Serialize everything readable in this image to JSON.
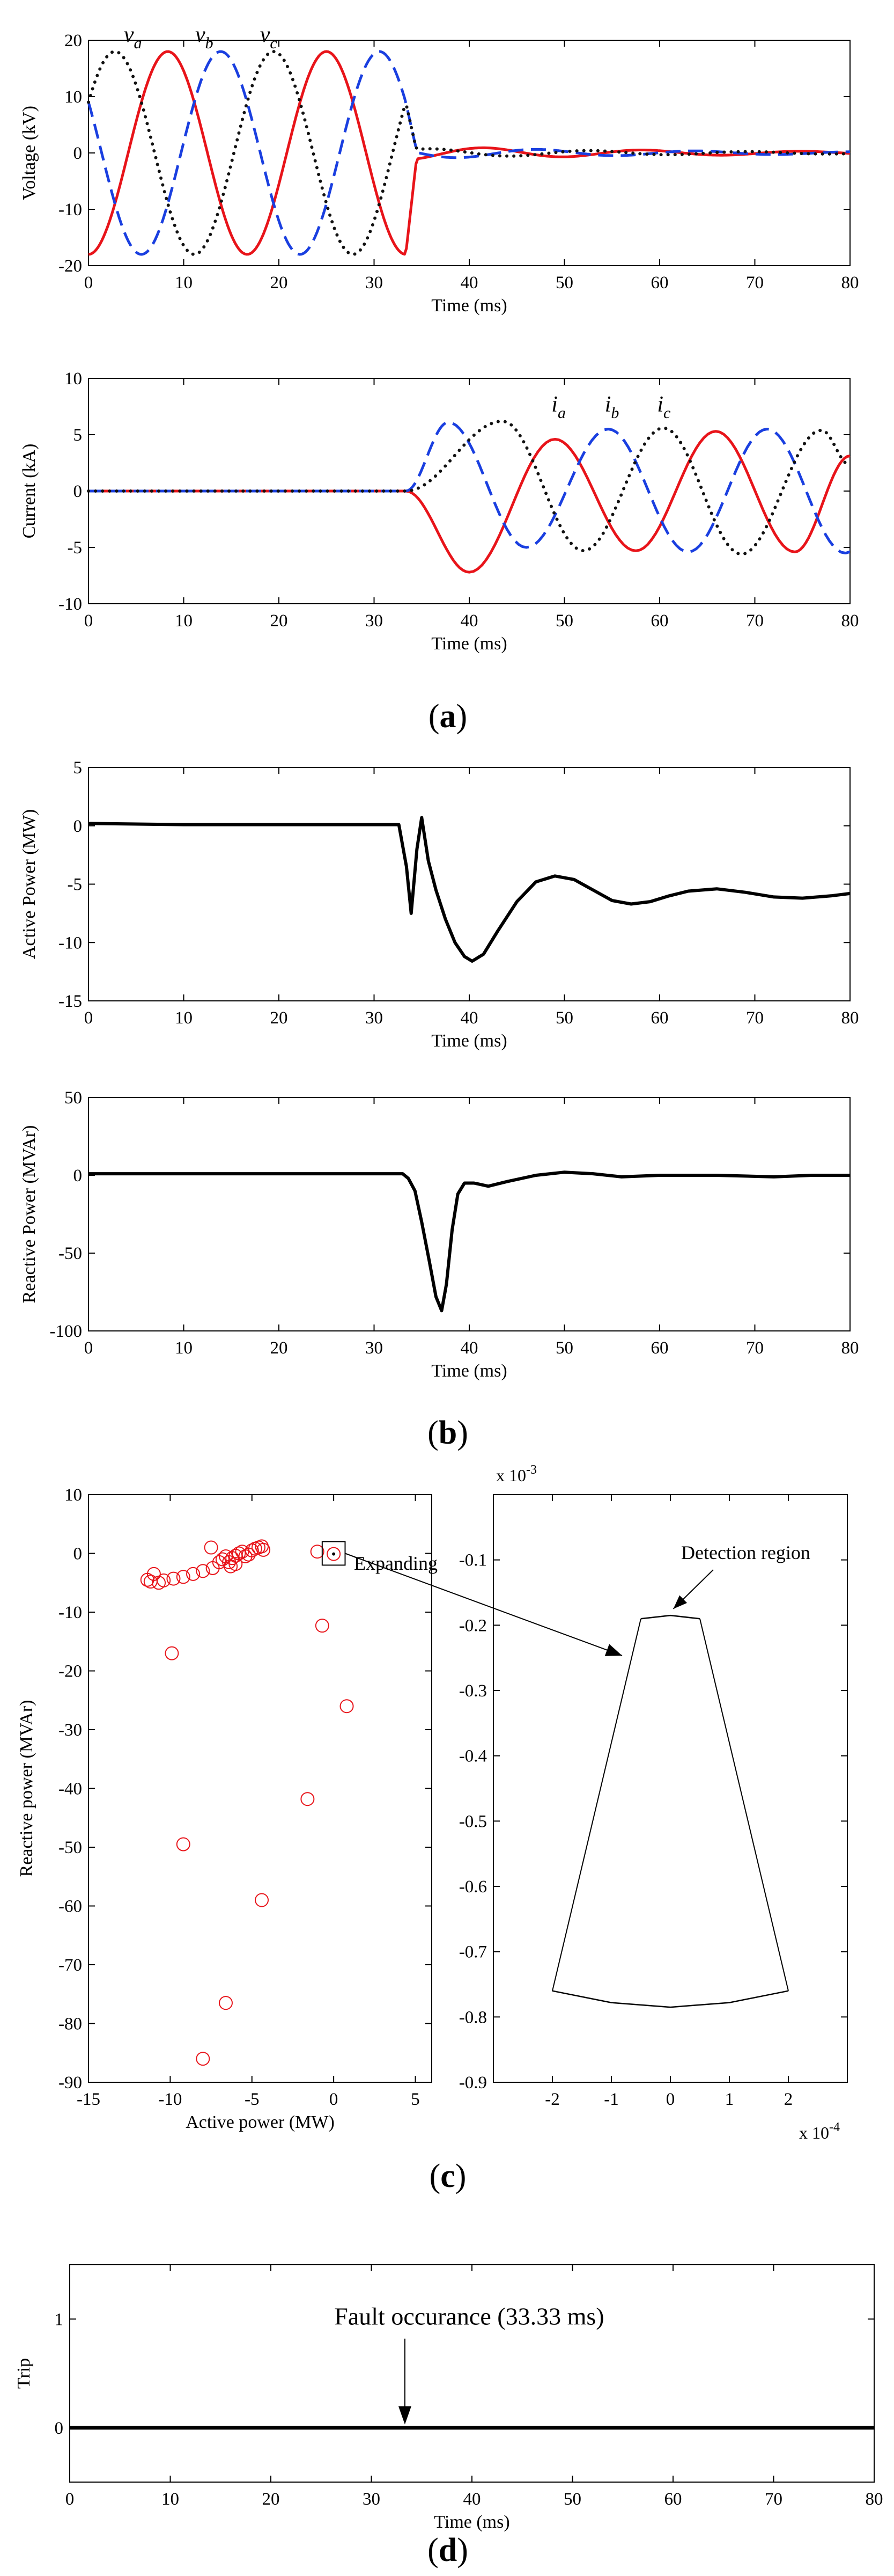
{
  "figure": {
    "panel_labels": {
      "a": {
        "open": "(",
        "letter": "a",
        "close": ")"
      },
      "b": {
        "open": "(",
        "letter": "b",
        "close": ")"
      },
      "c": {
        "open": "(",
        "letter": "c",
        "close": ")"
      },
      "d": {
        "open": "(",
        "letter": "d",
        "close": ")"
      }
    }
  },
  "chart_data": [
    {
      "id": "voltage",
      "type": "line",
      "xlabel": "Time (ms)",
      "ylabel": "Voltage (kV)",
      "xlim": [
        0,
        80
      ],
      "ylim": [
        -20,
        20
      ],
      "xticks": [
        0,
        10,
        20,
        30,
        40,
        50,
        60,
        70,
        80
      ],
      "yticks": [
        -20,
        -10,
        0,
        10,
        20
      ],
      "fault_time_ms": 33.33,
      "frequency_hz": 60,
      "series": [
        {
          "name": "va",
          "label_base": "v",
          "label_sub": "a",
          "color": "#e8141a",
          "dash": "solid",
          "pre_fault_amplitude": 18,
          "phase_deg": -90,
          "post_fault_peak": 1.2
        },
        {
          "name": "vb",
          "label_base": "v",
          "label_sub": "b",
          "color": "#1a3fe0",
          "dash": "dashed",
          "pre_fault_amplitude": 18,
          "phase_deg": 150,
          "post_fault_peak": 1.0
        },
        {
          "name": "vc",
          "label_base": "v",
          "label_sub": "c",
          "color": "#111111",
          "dash": "dotted",
          "pre_fault_amplitude": 18,
          "phase_deg": 30,
          "post_fault_peak": 0.8
        }
      ]
    },
    {
      "id": "current",
      "type": "line",
      "xlabel": "Time (ms)",
      "ylabel": "Current (kA)",
      "xlim": [
        0,
        80
      ],
      "ylim": [
        -10,
        10
      ],
      "xticks": [
        0,
        10,
        20,
        30,
        40,
        50,
        60,
        70,
        80
      ],
      "yticks": [
        -10,
        -5,
        0,
        5,
        10
      ],
      "fault_time_ms": 33.33,
      "series": [
        {
          "name": "ia",
          "label_base": "i",
          "label_sub": "a",
          "color": "#e8141a",
          "dash": "solid",
          "pre_fault": 0,
          "peaks": [
            [
              40,
              -7.2
            ],
            [
              49,
              4.6
            ],
            [
              57.5,
              -5.3
            ],
            [
              65.9,
              5.3
            ],
            [
              74.2,
              -5.4
            ]
          ]
        },
        {
          "name": "ib",
          "label_base": "i",
          "label_sub": "b",
          "color": "#1a3fe0",
          "dash": "dashed",
          "pre_fault": 0,
          "peaks": [
            [
              37.8,
              6.1
            ],
            [
              46,
              -5.0
            ],
            [
              54.6,
              5.5
            ],
            [
              63,
              -5.4
            ],
            [
              71.3,
              5.5
            ],
            [
              79.5,
              -5.5
            ]
          ]
        },
        {
          "name": "ic",
          "label_base": "i",
          "label_sub": "c",
          "color": "#111111",
          "dash": "dotted",
          "pre_fault": 0,
          "peaks": [
            [
              43.5,
              6.2
            ],
            [
              52,
              -5.3
            ],
            [
              60.4,
              5.6
            ],
            [
              68.6,
              -5.6
            ],
            [
              77,
              5.4
            ]
          ]
        }
      ]
    },
    {
      "id": "active_power",
      "type": "line",
      "xlabel": "Time (ms)",
      "ylabel": "Active Power (MW)",
      "xlim": [
        0,
        80
      ],
      "ylim": [
        -15,
        5
      ],
      "xticks": [
        0,
        10,
        20,
        30,
        40,
        50,
        60,
        70,
        80
      ],
      "yticks": [
        -15,
        -10,
        -5,
        0,
        5
      ],
      "series": [
        {
          "name": "P",
          "color": "#000000",
          "points": [
            [
              0,
              0.2
            ],
            [
              10,
              0.1
            ],
            [
              20,
              0.1
            ],
            [
              30,
              0.1
            ],
            [
              32.6,
              0.1
            ],
            [
              33.4,
              -3.5
            ],
            [
              33.9,
              -7.5
            ],
            [
              34.5,
              -2
            ],
            [
              35.0,
              0.7
            ],
            [
              35.7,
              -3
            ],
            [
              36.5,
              -5.5
            ],
            [
              37.5,
              -8
            ],
            [
              38.5,
              -10
            ],
            [
              39.5,
              -11.2
            ],
            [
              40.3,
              -11.6
            ],
            [
              41.5,
              -11
            ],
            [
              43,
              -9
            ],
            [
              45,
              -6.5
            ],
            [
              47,
              -4.8
            ],
            [
              49,
              -4.3
            ],
            [
              51,
              -4.6
            ],
            [
              53,
              -5.5
            ],
            [
              55,
              -6.4
            ],
            [
              57,
              -6.7
            ],
            [
              59,
              -6.5
            ],
            [
              61,
              -6.0
            ],
            [
              63,
              -5.6
            ],
            [
              66,
              -5.4
            ],
            [
              69,
              -5.7
            ],
            [
              72,
              -6.1
            ],
            [
              75,
              -6.2
            ],
            [
              78,
              -6.0
            ],
            [
              80,
              -5.8
            ]
          ]
        }
      ]
    },
    {
      "id": "reactive_power",
      "type": "line",
      "xlabel": "Time (ms)",
      "ylabel": "Reactive Power (MVAr)",
      "xlim": [
        0,
        80
      ],
      "ylim": [
        -100,
        50
      ],
      "xticks": [
        0,
        10,
        20,
        30,
        40,
        50,
        60,
        70,
        80
      ],
      "yticks": [
        -100,
        -50,
        0,
        50
      ],
      "series": [
        {
          "name": "Q",
          "color": "#000000",
          "points": [
            [
              0,
              1
            ],
            [
              10,
              1
            ],
            [
              20,
              1
            ],
            [
              30,
              1
            ],
            [
              33,
              1
            ],
            [
              33.6,
              -2
            ],
            [
              34.3,
              -10
            ],
            [
              35,
              -30
            ],
            [
              35.8,
              -55
            ],
            [
              36.5,
              -78
            ],
            [
              37.1,
              -87
            ],
            [
              37.6,
              -70
            ],
            [
              38.2,
              -35
            ],
            [
              38.8,
              -12
            ],
            [
              39.5,
              -5
            ],
            [
              40.5,
              -5
            ],
            [
              42,
              -7
            ],
            [
              44,
              -4
            ],
            [
              47,
              0
            ],
            [
              50,
              2
            ],
            [
              53,
              1
            ],
            [
              56,
              -1
            ],
            [
              60,
              0
            ],
            [
              66,
              0
            ],
            [
              72,
              -1
            ],
            [
              76,
              0
            ],
            [
              80,
              0
            ]
          ]
        }
      ]
    },
    {
      "id": "pq_scatter",
      "type": "scatter",
      "xlabel": "Active power (MW)",
      "ylabel": "Reactive power (MVAr)",
      "xlim": [
        -15,
        6
      ],
      "ylim": [
        -90,
        10
      ],
      "xticks": [
        -15,
        -10,
        -5,
        0,
        5
      ],
      "yticks": [
        -90,
        -80,
        -70,
        -60,
        -50,
        -40,
        -30,
        -20,
        -10,
        0,
        10
      ],
      "marker_color": "#e8141a",
      "points": [
        [
          -11.4,
          -4.5
        ],
        [
          -11.2,
          -4.8
        ],
        [
          -11.0,
          -3.5
        ],
        [
          -10.7,
          -5.0
        ],
        [
          -10.4,
          -4.6
        ],
        [
          -9.8,
          -4.3
        ],
        [
          -9.2,
          -4.0
        ],
        [
          -8.6,
          -3.5
        ],
        [
          -8.0,
          -3.0
        ],
        [
          -7.4,
          -2.5
        ],
        [
          -7.0,
          -1.5
        ],
        [
          -6.8,
          -1.0
        ],
        [
          -6.6,
          -0.5
        ],
        [
          -6.4,
          -1.5
        ],
        [
          -6.2,
          -0.8
        ],
        [
          -6.0,
          -0.4
        ],
        [
          -5.8,
          0.0
        ],
        [
          -5.6,
          0.3
        ],
        [
          -5.4,
          -0.5
        ],
        [
          -5.2,
          -0.2
        ],
        [
          -5.0,
          0.5
        ],
        [
          -4.8,
          0.8
        ],
        [
          -4.6,
          1.0
        ],
        [
          -4.4,
          1.2
        ],
        [
          -4.3,
          0.6
        ],
        [
          -6.0,
          -1.8
        ],
        [
          -6.3,
          -2.2
        ],
        [
          -7.5,
          1.0
        ],
        [
          -9.9,
          -17
        ],
        [
          -9.2,
          -49.5
        ],
        [
          -8.0,
          -86
        ],
        [
          -6.6,
          -76.5
        ],
        [
          -4.4,
          -59
        ],
        [
          -1.6,
          -41.8
        ],
        [
          0.8,
          -26
        ],
        [
          -0.7,
          -12.3
        ],
        [
          -1.0,
          0.3
        ],
        [
          0.0,
          -0.1
        ]
      ],
      "highlight_box": {
        "x": [
          -0.7,
          0.7
        ],
        "y": [
          -2.0,
          2.0
        ]
      },
      "annotation": "Expanding"
    },
    {
      "id": "detection_zoom",
      "type": "line",
      "xlim": [
        -3,
        3
      ],
      "ylim": [
        -0.9,
        0
      ],
      "xticks": [
        -2,
        -1,
        0,
        1,
        2
      ],
      "yticks": [
        -0.9,
        -0.8,
        -0.7,
        -0.6,
        -0.5,
        -0.4,
        -0.3,
        -0.2,
        -0.1
      ],
      "x_exponent": {
        "base": "x 10",
        "power": "-4"
      },
      "y_exponent": {
        "base": "x 10",
        "power": "-3"
      },
      "region": {
        "top_arc": [
          [
            -0.5,
            -0.19
          ],
          [
            0,
            -0.185
          ],
          [
            0.5,
            -0.19
          ]
        ],
        "bottom_arc": [
          [
            -2.0,
            -0.76
          ],
          [
            -1.0,
            -0.778
          ],
          [
            0,
            -0.785
          ],
          [
            1.0,
            -0.778
          ],
          [
            2.0,
            -0.76
          ]
        ]
      },
      "annotation": "Detection region"
    },
    {
      "id": "trip",
      "type": "line",
      "xlabel": "Time (ms)",
      "ylabel": "Trip",
      "xlim": [
        0,
        80
      ],
      "ylim": [
        -0.5,
        1.5
      ],
      "xticks": [
        0,
        10,
        20,
        30,
        40,
        50,
        60,
        70,
        80
      ],
      "yticks": [
        0,
        1
      ],
      "series": [
        {
          "name": "trip",
          "color": "#000000",
          "points": [
            [
              0,
              0
            ],
            [
              80,
              0
            ]
          ]
        }
      ],
      "annotation": "Fault occurance (33.33 ms)",
      "annotation_x": 33.33
    }
  ]
}
